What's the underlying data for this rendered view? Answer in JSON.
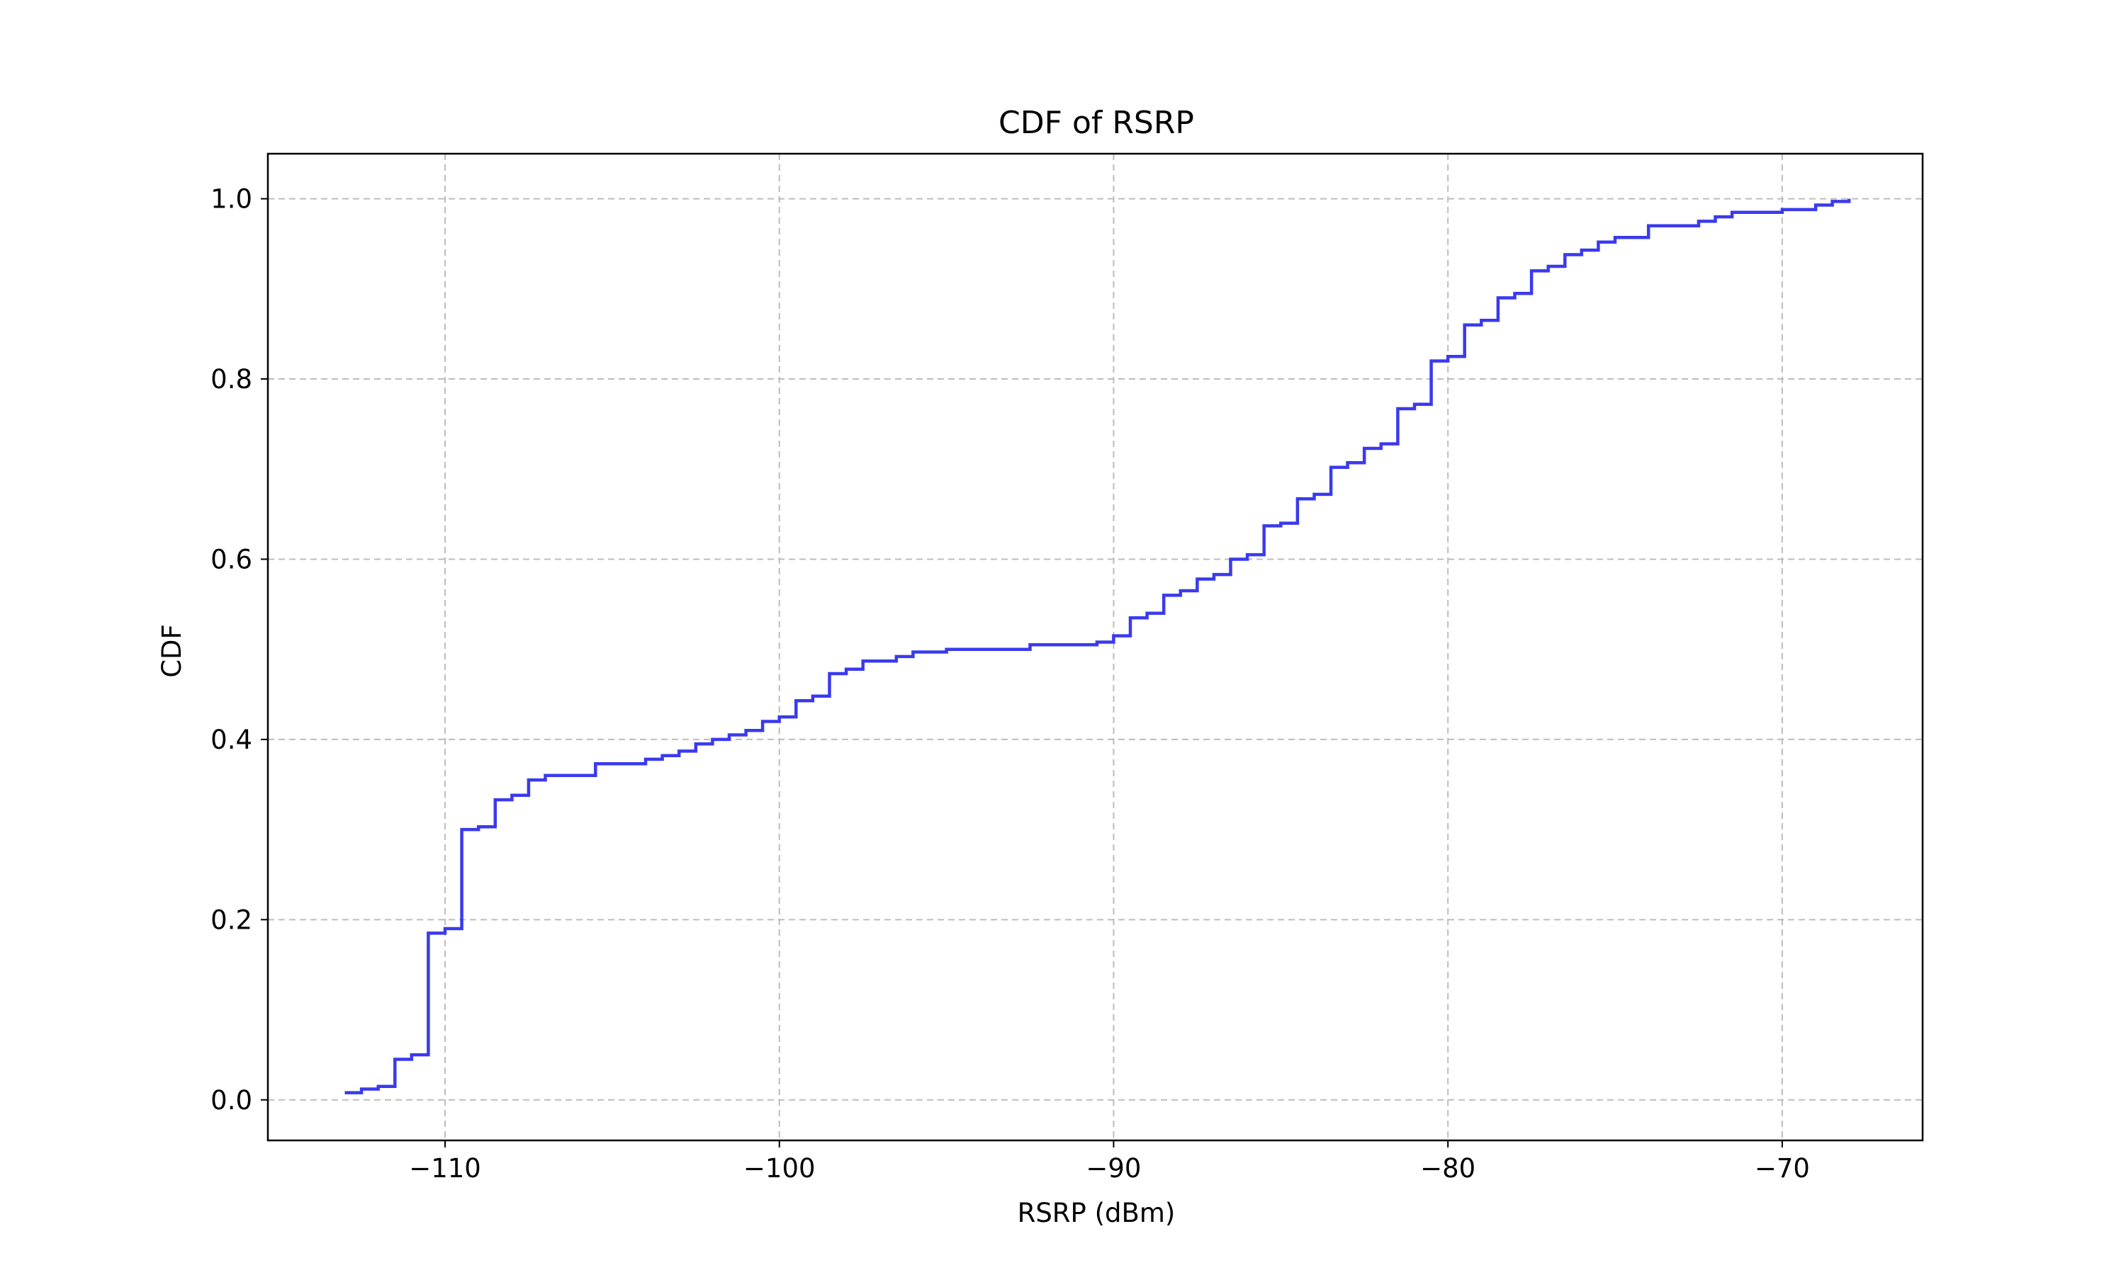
{
  "chart_data": {
    "type": "line",
    "step": true,
    "title": "CDF of RSRP",
    "xlabel": "RSRP (dBm)",
    "ylabel": "CDF",
    "xlim": [
      -115.3,
      -65.8
    ],
    "ylim": [
      -0.045,
      1.05
    ],
    "xticks": [
      -110,
      -100,
      -90,
      -80,
      -70
    ],
    "xtick_labels": [
      "−110",
      "−100",
      "−90",
      "−80",
      "−70"
    ],
    "yticks": [
      0.0,
      0.2,
      0.4,
      0.6,
      0.8,
      1.0
    ],
    "ytick_labels": [
      "0.0",
      "0.2",
      "0.4",
      "0.6",
      "0.8",
      "1.0"
    ],
    "grid": true,
    "legend": "none",
    "colors": {
      "series": "#3a3aee",
      "grid": "#bdbdbd",
      "axes": "#000000"
    },
    "series": [
      {
        "x": [
          -113,
          -112.5,
          -112,
          -111.5,
          -111,
          -110.5,
          -110,
          -109.5,
          -109,
          -108.5,
          -108,
          -107.5,
          -107,
          -105.5,
          -104,
          -103.5,
          -103,
          -102.5,
          -102,
          -101.5,
          -101,
          -100.5,
          -100,
          -99.5,
          -99,
          -98.5,
          -98,
          -97.5,
          -96.5,
          -96,
          -95,
          -92.5,
          -90.5,
          -90,
          -89.5,
          -89,
          -88.5,
          -88,
          -87.5,
          -87,
          -86.5,
          -86,
          -85.5,
          -85,
          -84.5,
          -84,
          -83.5,
          -83,
          -82.5,
          -82,
          -81.5,
          -81,
          -80.5,
          -80,
          -79.5,
          -79,
          -78.5,
          -78,
          -77.5,
          -77,
          -76.5,
          -76,
          -75.5,
          -75,
          -74,
          -72.5,
          -72,
          -71.5,
          -70,
          -69,
          -68.5,
          -68
        ],
        "y": [
          0.008,
          0.012,
          0.015,
          0.045,
          0.05,
          0.185,
          0.19,
          0.3,
          0.303,
          0.333,
          0.338,
          0.355,
          0.36,
          0.373,
          0.378,
          0.382,
          0.387,
          0.395,
          0.4,
          0.405,
          0.41,
          0.42,
          0.425,
          0.443,
          0.448,
          0.473,
          0.478,
          0.487,
          0.492,
          0.497,
          0.5,
          0.505,
          0.508,
          0.515,
          0.535,
          0.54,
          0.56,
          0.565,
          0.578,
          0.583,
          0.6,
          0.605,
          0.637,
          0.64,
          0.667,
          0.672,
          0.702,
          0.707,
          0.723,
          0.728,
          0.767,
          0.772,
          0.82,
          0.825,
          0.86,
          0.865,
          0.89,
          0.895,
          0.92,
          0.925,
          0.938,
          0.943,
          0.952,
          0.957,
          0.97,
          0.975,
          0.98,
          0.985,
          0.988,
          0.993,
          0.997,
          1.0
        ]
      }
    ]
  }
}
